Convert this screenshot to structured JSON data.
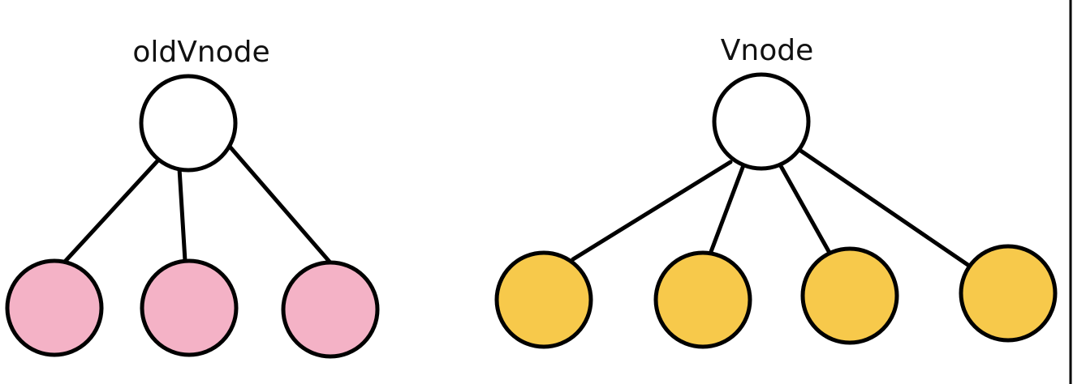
{
  "trees": {
    "old": {
      "label": "oldVnode",
      "root_fill": "#ffffff",
      "child_fill": "#f4b2c6",
      "child_count": 3
    },
    "new": {
      "label": "Vnode",
      "root_fill": "#ffffff",
      "child_fill": "#f7c94b",
      "child_count": 4
    }
  },
  "colors": {
    "stroke": "#000000",
    "background": "#ffffff"
  }
}
